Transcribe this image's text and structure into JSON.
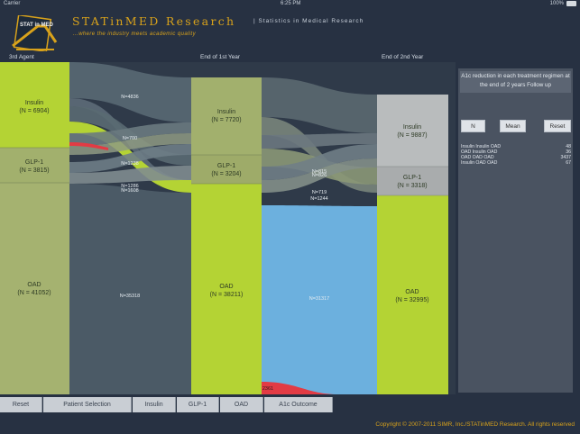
{
  "status": {
    "carrier": "Carrier",
    "time": "6:25 PM",
    "battery": "100%"
  },
  "app": {
    "logo_text": "STAT in MED",
    "title": "STATinMED Research",
    "subtitle": "| Statistics in Medical Research",
    "tagline": "...where the industry meets academic quality"
  },
  "columns": [
    "3rd Agent",
    "End of 1st Year",
    "End of 2nd Year"
  ],
  "nodes": {
    "col1": [
      {
        "name": "Insulin",
        "count": "(N = 6904)"
      },
      {
        "name": "GLP-1",
        "count": "(N = 3815)"
      },
      {
        "name": "OAD",
        "count": "(N = 41052)"
      }
    ],
    "col2": [
      {
        "name": "Insulin",
        "count": "(N = 7720)"
      },
      {
        "name": "GLP-1",
        "count": "(N = 3204)"
      },
      {
        "name": "OAD",
        "count": "(N = 38211)"
      }
    ],
    "col3": [
      {
        "name": "Insulin",
        "count": "(N = 9887)"
      },
      {
        "name": "GLP-1",
        "count": "(N = 3318)"
      },
      {
        "name": "OAD",
        "count": "(N = 32995)"
      }
    ]
  },
  "flows": {
    "a_insulin": "N=4836",
    "a_mid1": "N=700",
    "a_mid2": "N=1238",
    "a_mid3": "N=1286",
    "a_mid4": "N=1608",
    "a_oad": "N=35318",
    "b_mid1": "N=815",
    "b_mid2": "N=826",
    "b_mid3": "N=719",
    "b_mid4": "N=1244",
    "b_oad": "N=31317",
    "b_red": "2361"
  },
  "panel": {
    "title": "A1c reduction in each treatment regimen at the end of 2 years Follow up",
    "buttons": [
      "N",
      "Mean",
      "Reset"
    ],
    "results": [
      {
        "label": "Insulin Insulin OAD",
        "value": "48"
      },
      {
        "label": "OAD Insulin OAD",
        "value": "36"
      },
      {
        "label": "OAD OAD OAD",
        "value": "3437"
      },
      {
        "label": "Insulin OAD OAD",
        "value": "67"
      }
    ]
  },
  "toolbar": [
    "Reset",
    "Patient Selection",
    "Insulin",
    "GLP-1",
    "OAD",
    "A1c Outcome"
  ],
  "footer": "Copyright © 2007-2011 SIMR, Inc./STATinMED Research. All rights reserved",
  "colors": {
    "lime": "#b4d334",
    "olive": "#a2b06d",
    "teal": "#4d5e6a",
    "blue": "#6cb0de",
    "grey_light": "#b9bcbd",
    "red": "#e23b44",
    "gold": "#d8a21b"
  }
}
